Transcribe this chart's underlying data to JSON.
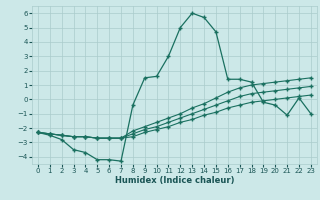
{
  "xlabel": "Humidex (Indice chaleur)",
  "bg_color": "#cce8e8",
  "grid_color": "#aacccc",
  "line_color": "#1a7060",
  "xlim": [
    -0.5,
    23.5
  ],
  "ylim": [
    -4.5,
    6.5
  ],
  "xticks": [
    0,
    1,
    2,
    3,
    4,
    5,
    6,
    7,
    8,
    9,
    10,
    11,
    12,
    13,
    14,
    15,
    16,
    17,
    18,
    19,
    20,
    21,
    22,
    23
  ],
  "yticks": [
    -4,
    -3,
    -2,
    -1,
    0,
    1,
    2,
    3,
    4,
    5,
    6
  ],
  "line1_x": [
    0,
    1,
    2,
    3,
    4,
    5,
    6,
    7,
    8,
    9,
    10,
    11,
    12,
    13,
    14,
    15,
    16,
    17,
    18,
    19,
    20,
    21,
    22,
    23
  ],
  "line1_y": [
    -2.3,
    -2.5,
    -2.8,
    -3.5,
    -3.7,
    -4.2,
    -4.2,
    -4.3,
    -0.4,
    1.5,
    1.6,
    3.0,
    5.0,
    6.0,
    5.7,
    4.7,
    1.4,
    1.4,
    1.2,
    -0.2,
    -0.4,
    -1.1,
    0.1,
    -1.0
  ],
  "line2_x": [
    0,
    1,
    2,
    3,
    4,
    5,
    6,
    7,
    8,
    9,
    10,
    11,
    12,
    13,
    14,
    15,
    16,
    17,
    18,
    19,
    20,
    21,
    22,
    23
  ],
  "line2_y": [
    -2.3,
    -2.4,
    -2.5,
    -2.6,
    -2.6,
    -2.7,
    -2.7,
    -2.7,
    -2.2,
    -1.9,
    -1.6,
    -1.3,
    -1.0,
    -0.6,
    -0.3,
    0.1,
    0.5,
    0.8,
    1.0,
    1.1,
    1.2,
    1.3,
    1.4,
    1.5
  ],
  "line3_x": [
    0,
    1,
    2,
    3,
    4,
    5,
    6,
    7,
    8,
    9,
    10,
    11,
    12,
    13,
    14,
    15,
    16,
    17,
    18,
    19,
    20,
    21,
    22,
    23
  ],
  "line3_y": [
    -2.3,
    -2.4,
    -2.5,
    -2.6,
    -2.6,
    -2.7,
    -2.7,
    -2.7,
    -2.4,
    -2.1,
    -1.9,
    -1.6,
    -1.3,
    -1.0,
    -0.7,
    -0.4,
    -0.1,
    0.2,
    0.4,
    0.5,
    0.6,
    0.7,
    0.8,
    0.9
  ],
  "line4_x": [
    0,
    1,
    2,
    3,
    4,
    5,
    6,
    7,
    8,
    9,
    10,
    11,
    12,
    13,
    14,
    15,
    16,
    17,
    18,
    19,
    20,
    21,
    22,
    23
  ],
  "line4_y": [
    -2.3,
    -2.4,
    -2.5,
    -2.6,
    -2.6,
    -2.7,
    -2.7,
    -2.7,
    -2.6,
    -2.3,
    -2.1,
    -1.9,
    -1.6,
    -1.4,
    -1.1,
    -0.9,
    -0.6,
    -0.4,
    -0.2,
    -0.1,
    0.0,
    0.1,
    0.2,
    0.3
  ]
}
